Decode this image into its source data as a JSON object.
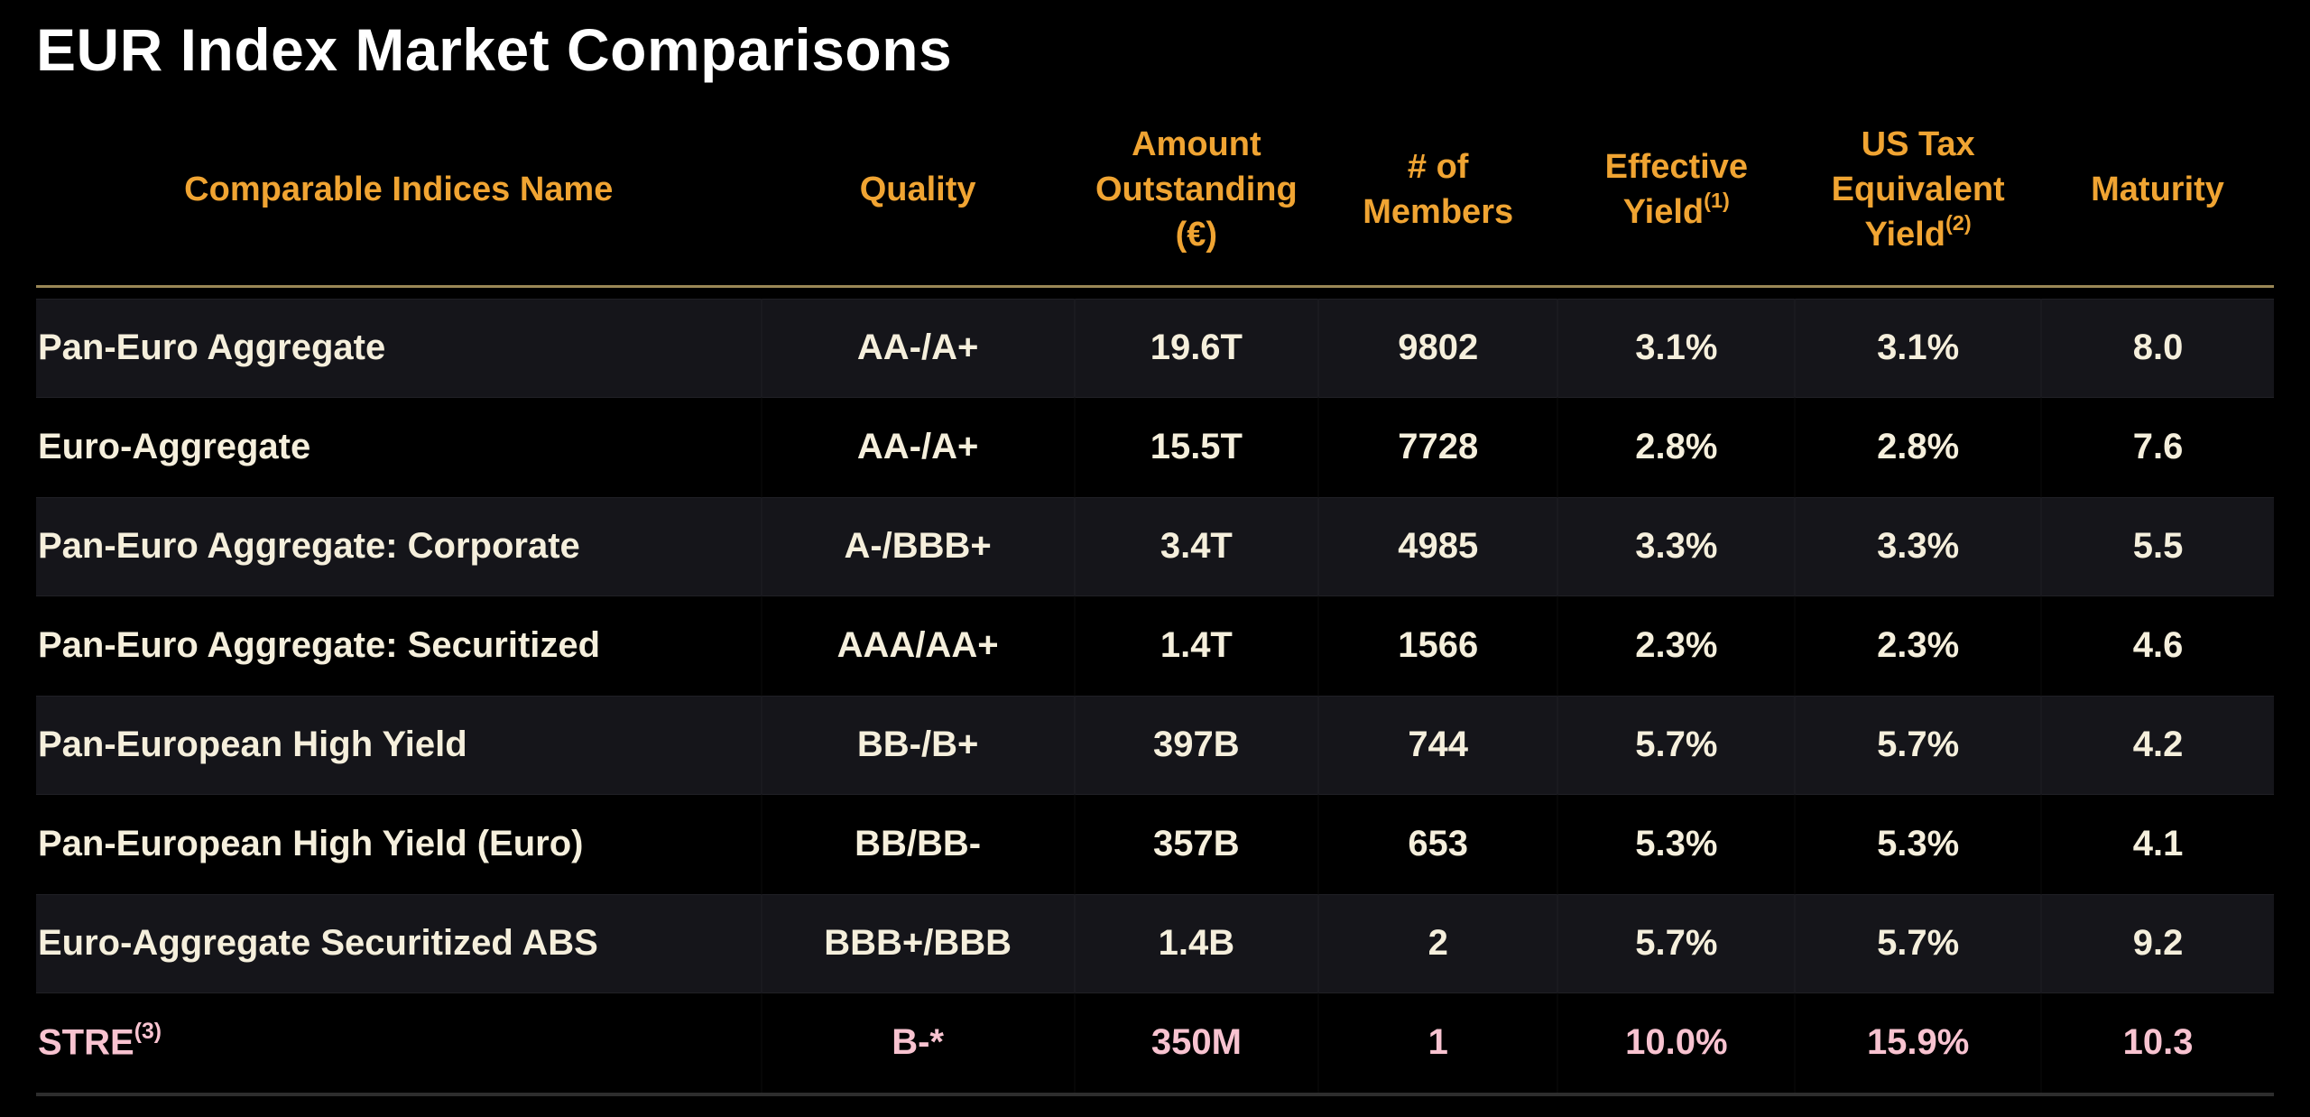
{
  "page": {
    "title": "EUR Index Market Comparisons"
  },
  "colors": {
    "background": "#000000",
    "title_text": "#FFFFFF",
    "header_text": "#F0A432",
    "header_rule": "#9A8756",
    "row_text": "#F5EFDC",
    "highlight_row_text": "#F8C3D0",
    "stripe_background": "#15151A",
    "bottom_rule": "#2D2D2D"
  },
  "table": {
    "columns": [
      {
        "key": "name",
        "label": "Comparable Indices Name",
        "sup": ""
      },
      {
        "key": "quality",
        "label": "Quality",
        "sup": ""
      },
      {
        "key": "amount",
        "label": "Amount Outstanding (€)",
        "sup": ""
      },
      {
        "key": "members",
        "label": "# of Members",
        "sup": ""
      },
      {
        "key": "effyield",
        "label": "Effective Yield",
        "sup": "(1)"
      },
      {
        "key": "ustax",
        "label": "US Tax Equivalent Yield",
        "sup": "(2)"
      },
      {
        "key": "maturity",
        "label": "Maturity",
        "sup": ""
      }
    ],
    "rows": [
      {
        "name": "Pan-Euro Aggregate",
        "name_sup": "",
        "quality": "AA-/A+",
        "amount": "19.6T",
        "members": "9802",
        "effyield": "3.1%",
        "ustax": "3.1%",
        "maturity": "8.0",
        "highlight": false
      },
      {
        "name": "Euro-Aggregate",
        "name_sup": "",
        "quality": "AA-/A+",
        "amount": "15.5T",
        "members": "7728",
        "effyield": "2.8%",
        "ustax": "2.8%",
        "maturity": "7.6",
        "highlight": false
      },
      {
        "name": "Pan-Euro Aggregate: Corporate",
        "name_sup": "",
        "quality": "A-/BBB+",
        "amount": "3.4T",
        "members": "4985",
        "effyield": "3.3%",
        "ustax": "3.3%",
        "maturity": "5.5",
        "highlight": false
      },
      {
        "name": "Pan-Euro Aggregate: Securitized",
        "name_sup": "",
        "quality": "AAA/AA+",
        "amount": "1.4T",
        "members": "1566",
        "effyield": "2.3%",
        "ustax": "2.3%",
        "maturity": "4.6",
        "highlight": false
      },
      {
        "name": "Pan-European High Yield",
        "name_sup": "",
        "quality": "BB-/B+",
        "amount": "397B",
        "members": "744",
        "effyield": "5.7%",
        "ustax": "5.7%",
        "maturity": "4.2",
        "highlight": false
      },
      {
        "name": "Pan-European High Yield (Euro)",
        "name_sup": "",
        "quality": "BB/BB-",
        "amount": "357B",
        "members": "653",
        "effyield": "5.3%",
        "ustax": "5.3%",
        "maturity": "4.1",
        "highlight": false
      },
      {
        "name": "Euro-Aggregate Securitized ABS",
        "name_sup": "",
        "quality": "BBB+/BBB",
        "amount": "1.4B",
        "members": "2",
        "effyield": "5.7%",
        "ustax": "5.7%",
        "maturity": "9.2",
        "highlight": false
      },
      {
        "name": "STRE",
        "name_sup": "(3)",
        "quality": "B-*",
        "amount": "350M",
        "members": "1",
        "effyield": "10.0%",
        "ustax": "15.9%",
        "maturity": "10.3",
        "highlight": true
      }
    ]
  }
}
